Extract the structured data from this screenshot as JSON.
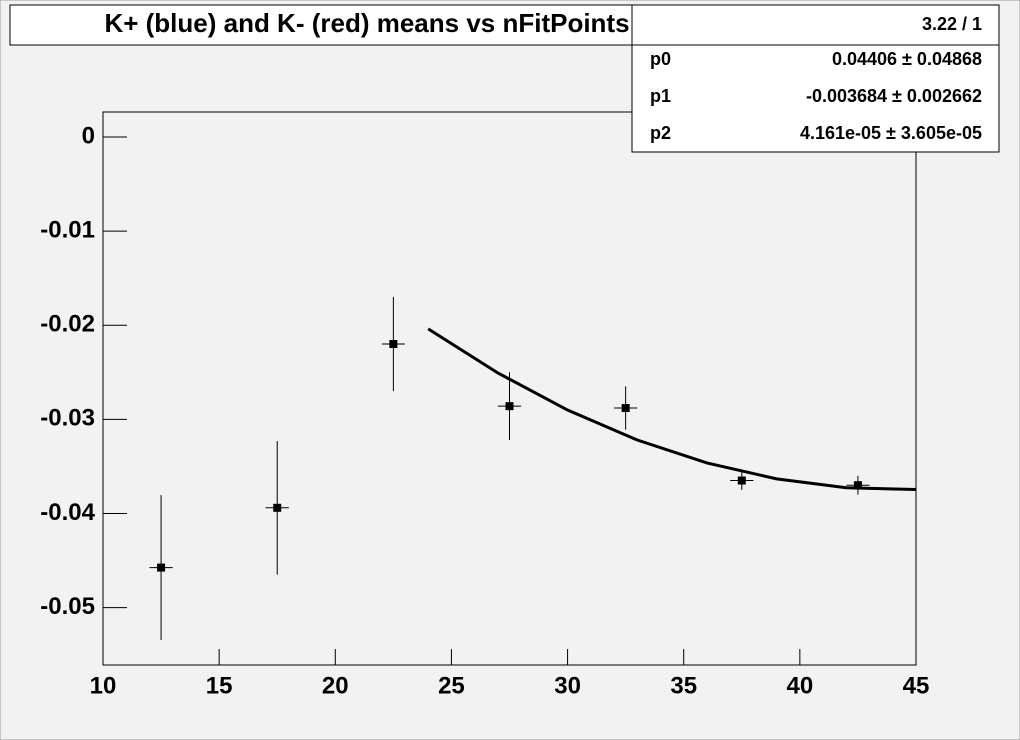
{
  "chart_data": {
    "type": "scatter",
    "title": "K+ (blue) and K- (red) means vs nFitPoints",
    "xlim": [
      10,
      45
    ],
    "xticks": [
      10,
      15,
      20,
      25,
      30,
      35,
      40,
      45
    ],
    "ylim": [
      -0.0561,
      0.00265
    ],
    "yticks": [
      0,
      -0.01,
      -0.02,
      -0.03,
      -0.04,
      -0.05
    ],
    "series": [
      {
        "color": "#000000",
        "x": [
          12.5,
          17.5,
          22.5,
          27.5,
          32.5,
          37.5,
          42.5
        ],
        "x_errors": [
          0.5,
          0.5,
          0.5,
          0.5,
          0.5,
          0.5,
          0.5
        ],
        "values": [
          -0.04575,
          -0.0394,
          -0.022,
          -0.0286,
          -0.0288,
          -0.0365,
          -0.037
        ],
        "errors": [
          0.0077,
          0.0071,
          0.005,
          0.0036,
          0.0023,
          0.001,
          0.001
        ]
      }
    ],
    "fit": {
      "color": "#000000",
      "x": [
        24,
        27,
        30,
        33,
        36,
        39,
        42,
        45
      ],
      "values": [
        -0.02039,
        -0.025074,
        -0.029011,
        -0.032199,
        -0.034637,
        -0.036326,
        -0.037268,
        -0.03746
      ]
    },
    "stats": {
      "header": "3.22 / 1",
      "rows": [
        {
          "name": "p0",
          "value": "0.04406 ± 0.04868"
        },
        {
          "name": "p1",
          "value": "-0.003684 ± 0.002662"
        },
        {
          "name": "p2",
          "value": "4.161e-05 ± 3.605e-05"
        }
      ]
    }
  }
}
